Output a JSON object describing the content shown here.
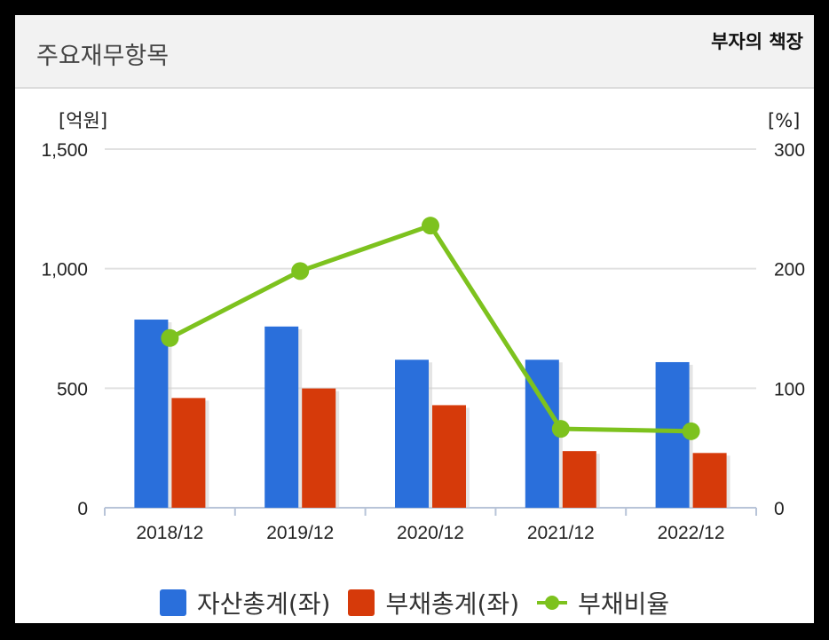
{
  "header": {
    "title": "주요재무항목",
    "brand": "부자의 책장"
  },
  "legend": [
    {
      "label": "자산총계(좌)",
      "color": "#2a6fdb",
      "kind": "bar"
    },
    {
      "label": "부채총계(좌)",
      "color": "#d63a0a",
      "kind": "bar"
    },
    {
      "label": "부채비율",
      "color": "#7dc21e",
      "kind": "line"
    }
  ],
  "chart_data": {
    "type": "bar",
    "categories": [
      "2018/12",
      "2019/12",
      "2020/12",
      "2021/12",
      "2022/12"
    ],
    "y_left_label": "[억원]",
    "y_right_label": "[%]",
    "y_left_ticks": [
      "0",
      "500",
      "1,000",
      "1,500"
    ],
    "y_right_ticks": [
      "0",
      "100",
      "200",
      "300"
    ],
    "ylim_left": [
      0,
      1500
    ],
    "ylim_right": [
      0,
      300
    ],
    "grid": true,
    "legend_position": "bottom",
    "series": [
      {
        "name": "자산총계(좌)",
        "type": "bar",
        "axis": "left",
        "color": "#2a6fdb",
        "values": [
          787,
          758,
          619,
          619,
          609
        ]
      },
      {
        "name": "부채총계(좌)",
        "type": "bar",
        "axis": "left",
        "color": "#d63a0a",
        "values": [
          459,
          499,
          429,
          237,
          229
        ]
      },
      {
        "name": "부채비율",
        "type": "line",
        "axis": "right",
        "color": "#7dc21e",
        "values": [
          142,
          198,
          236,
          66,
          64
        ]
      }
    ]
  }
}
